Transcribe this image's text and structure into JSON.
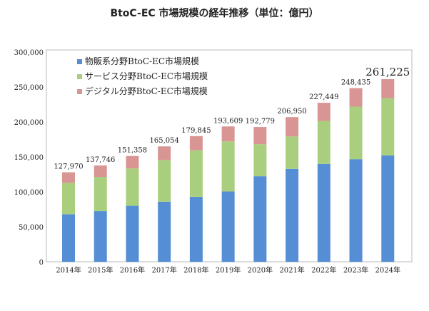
{
  "chart_data": {
    "type": "bar",
    "stacked": true,
    "title": "BtoC-EC 市場規模の経年推移（単位：億円）",
    "xlabel": "",
    "ylabel": "",
    "ylim": [
      0,
      300000
    ],
    "yticks": [
      "0",
      "50,000",
      "100,000",
      "150,000",
      "200,000",
      "250,000",
      "300,000"
    ],
    "ytick_values": [
      0,
      50000,
      100000,
      150000,
      200000,
      250000,
      300000
    ],
    "categories": [
      "2014年",
      "2015年",
      "2016年",
      "2017年",
      "2018年",
      "2019年",
      "2020年",
      "2021年",
      "2022年",
      "2023年",
      "2024年"
    ],
    "series": [
      {
        "name": "物販系分野BtoC-EC市場規模",
        "color": "#558ED5",
        "values": [
          68043,
          72398,
          80043,
          86008,
          92992,
          100515,
          122333,
          132865,
          139997,
          146760,
          152194
        ]
      },
      {
        "name": "サービス分野BtoC-EC市場規模",
        "color": "#A9CF7E",
        "values": [
          44816,
          49014,
          53532,
          59568,
          66471,
          71672,
          45832,
          46424,
          61477,
          75169,
          81998
        ]
      },
      {
        "name": "デジタル分野BtoC-EC市場規模",
        "color": "#D99594",
        "values": [
          15111,
          16334,
          17782,
          19478,
          20382,
          21422,
          24614,
          27661,
          25974,
          26506,
          27033
        ]
      }
    ],
    "totals": [
      127970,
      137746,
      151358,
      165054,
      179845,
      193609,
      192779,
      206950,
      227449,
      248435,
      261225
    ],
    "total_labels": [
      "127,970",
      "137,746",
      "151,358",
      "165,054",
      "179,845",
      "193,609",
      "192,779",
      "206,950",
      "227,449",
      "248,435",
      "261,225"
    ],
    "legend_position": "top-left",
    "grid": false
  }
}
